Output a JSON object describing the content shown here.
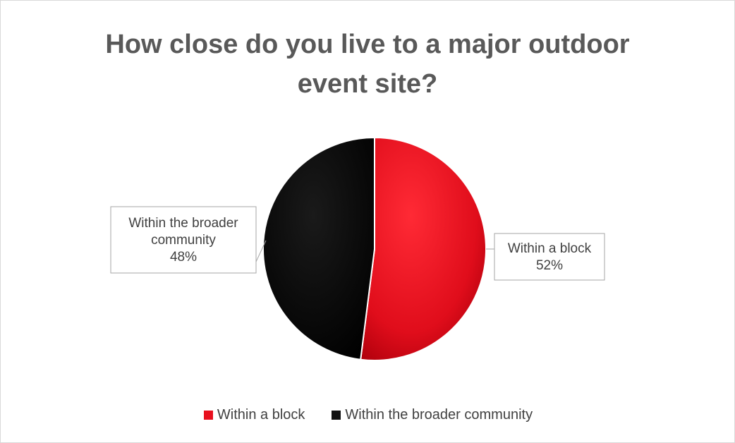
{
  "chart_data": {
    "type": "pie",
    "title": "How close do you live to a major outdoor event site?",
    "categories": [
      "Within a block",
      "Within the broader community"
    ],
    "values": [
      52,
      48
    ],
    "unit": "%",
    "slice_colors": [
      "#e8101e",
      "#111111"
    ],
    "legend_position": "bottom",
    "data_labels": [
      {
        "lines": [
          "Within a block",
          "52%"
        ]
      },
      {
        "lines": [
          "Within the broader",
          "community",
          "48%"
        ]
      }
    ]
  }
}
